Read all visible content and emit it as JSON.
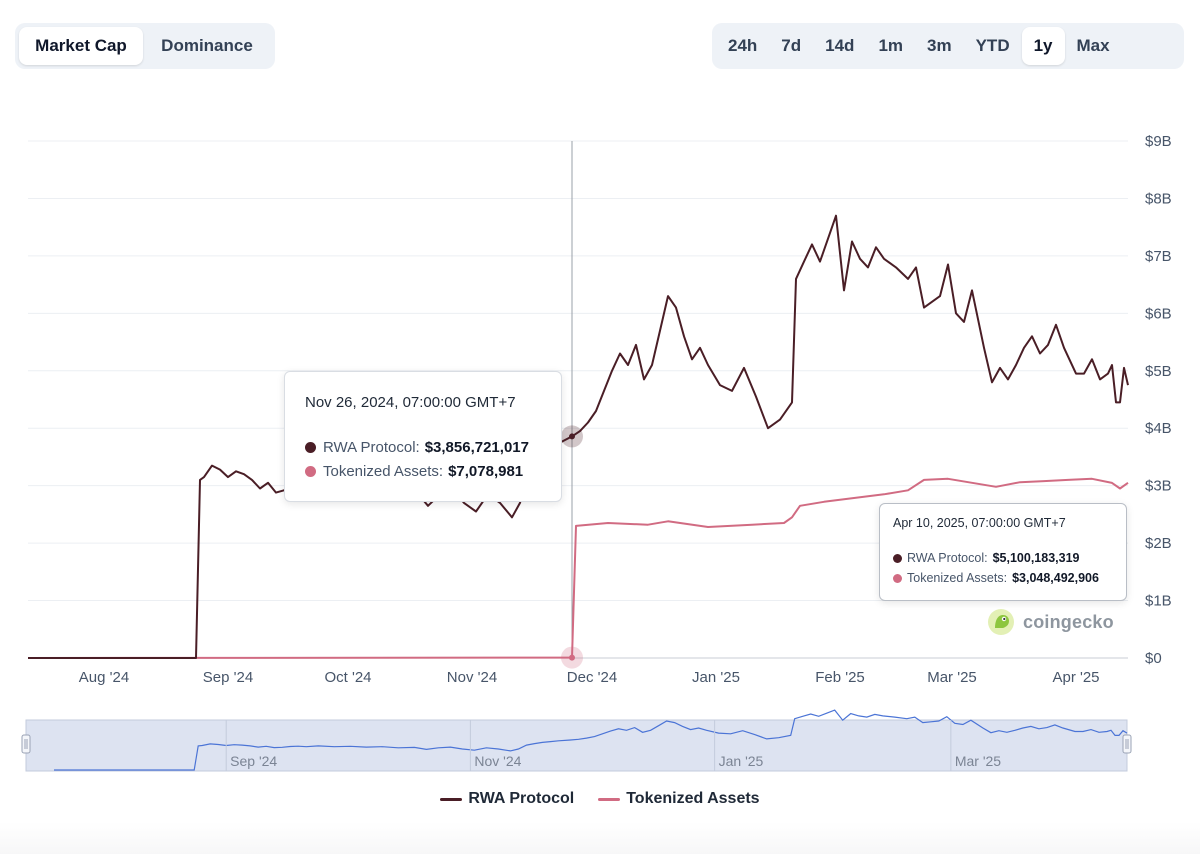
{
  "tabs": [
    {
      "label": "Market Cap",
      "active": true
    },
    {
      "label": "Dominance",
      "active": false
    }
  ],
  "ranges": [
    {
      "label": "24h",
      "active": false
    },
    {
      "label": "7d",
      "active": false
    },
    {
      "label": "14d",
      "active": false
    },
    {
      "label": "1m",
      "active": false
    },
    {
      "label": "3m",
      "active": false
    },
    {
      "label": "YTD",
      "active": false
    },
    {
      "label": "1y",
      "active": true
    },
    {
      "label": "Max",
      "active": false
    }
  ],
  "chart_data": {
    "type": "line",
    "y_ticks": [
      "$0",
      "$1B",
      "$2B",
      "$3B",
      "$4B",
      "$5B",
      "$6B",
      "$7B",
      "$8B",
      "$9B"
    ],
    "ylim": [
      0,
      9000000000
    ],
    "x_ticks": [
      "Aug '24",
      "Sep '24",
      "Oct '24",
      "Nov '24",
      "Dec '24",
      "Jan '25",
      "Feb '25",
      "Mar '25",
      "Apr '25"
    ],
    "grid": true,
    "legend_position": "bottom-center",
    "series": [
      {
        "name": "RWA Protocol",
        "color": "#4a1e26",
        "points": [
          [
            "2024-07-13",
            0
          ],
          [
            "2024-08-24",
            0
          ],
          [
            "2024-08-25",
            3100000000.0
          ],
          [
            "2024-08-26",
            3150000000.0
          ],
          [
            "2024-08-28",
            3350000000.0
          ],
          [
            "2024-08-30",
            3280000000.0
          ],
          [
            "2024-09-01",
            3150000000.0
          ],
          [
            "2024-09-03",
            3250000000.0
          ],
          [
            "2024-09-05",
            3200000000.0
          ],
          [
            "2024-09-07",
            3100000000.0
          ],
          [
            "2024-09-09",
            2950000000.0
          ],
          [
            "2024-09-11",
            3050000000.0
          ],
          [
            "2024-09-13",
            2880000000.0
          ],
          [
            "2024-09-15",
            2920000000.0
          ],
          [
            "2024-09-17",
            3020000000.0
          ],
          [
            "2024-09-19",
            3060000000.0
          ],
          [
            "2024-09-21",
            3000000000.0
          ],
          [
            "2024-09-24",
            3100000000.0
          ],
          [
            "2024-09-28",
            3000000000.0
          ],
          [
            "2024-10-02",
            3050000000.0
          ],
          [
            "2024-10-06",
            2950000000.0
          ],
          [
            "2024-10-10",
            3000000000.0
          ],
          [
            "2024-10-14",
            2850000000.0
          ],
          [
            "2024-10-18",
            2900000000.0
          ],
          [
            "2024-10-21",
            2650000000.0
          ],
          [
            "2024-10-24",
            2850000000.0
          ],
          [
            "2024-10-27",
            2950000000.0
          ],
          [
            "2024-10-30",
            2700000000.0
          ],
          [
            "2024-11-02",
            2550000000.0
          ],
          [
            "2024-11-05",
            2850000000.0
          ],
          [
            "2024-11-08",
            2700000000.0
          ],
          [
            "2024-11-11",
            2450000000.0
          ],
          [
            "2024-11-13",
            2700000000.0
          ],
          [
            "2024-11-15",
            3200000000.0
          ],
          [
            "2024-11-17",
            3400000000.0
          ],
          [
            "2024-11-19",
            3550000000.0
          ],
          [
            "2024-11-21",
            3650000000.0
          ],
          [
            "2024-11-23",
            3750000000.0
          ],
          [
            "2024-11-26",
            3857000000.0
          ],
          [
            "2024-11-28",
            3950000000.0
          ],
          [
            "2024-11-30",
            4100000000.0
          ],
          [
            "2024-12-02",
            4300000000.0
          ],
          [
            "2024-12-04",
            4650000000.0
          ],
          [
            "2024-12-06",
            5000000000.0
          ],
          [
            "2024-12-08",
            5300000000.0
          ],
          [
            "2024-12-10",
            5100000000.0
          ],
          [
            "2024-12-12",
            5450000000.0
          ],
          [
            "2024-12-14",
            4850000000.0
          ],
          [
            "2024-12-16",
            5100000000.0
          ],
          [
            "2024-12-18",
            5700000000.0
          ],
          [
            "2024-12-20",
            6300000000.0
          ],
          [
            "2024-12-22",
            6100000000.0
          ],
          [
            "2024-12-24",
            5600000000.0
          ],
          [
            "2024-12-26",
            5200000000.0
          ],
          [
            "2024-12-28",
            5400000000.0
          ],
          [
            "2024-12-30",
            5100000000.0
          ],
          [
            "2025-01-02",
            4750000000.0
          ],
          [
            "2025-01-05",
            4650000000.0
          ],
          [
            "2025-01-08",
            5050000000.0
          ],
          [
            "2025-01-11",
            4550000000.0
          ],
          [
            "2025-01-14",
            4000000000.0
          ],
          [
            "2025-01-17",
            4150000000.0
          ],
          [
            "2025-01-20",
            4450000000.0
          ],
          [
            "2025-01-21",
            6600000000.0
          ],
          [
            "2025-01-23",
            6900000000.0
          ],
          [
            "2025-01-25",
            7200000000.0
          ],
          [
            "2025-01-27",
            6900000000.0
          ],
          [
            "2025-01-29",
            7300000000.0
          ],
          [
            "2025-01-31",
            7700000000.0
          ],
          [
            "2025-02-02",
            6400000000.0
          ],
          [
            "2025-02-04",
            7250000000.0
          ],
          [
            "2025-02-06",
            6950000000.0
          ],
          [
            "2025-02-08",
            6800000000.0
          ],
          [
            "2025-02-10",
            7150000000.0
          ],
          [
            "2025-02-12",
            6950000000.0
          ],
          [
            "2025-02-15",
            6800000000.0
          ],
          [
            "2025-02-18",
            6600000000.0
          ],
          [
            "2025-02-20",
            6800000000.0
          ],
          [
            "2025-02-22",
            6100000000.0
          ],
          [
            "2025-02-24",
            6200000000.0
          ],
          [
            "2025-02-26",
            6300000000.0
          ],
          [
            "2025-02-28",
            6850000000.0
          ],
          [
            "2025-03-02",
            6000000000.0
          ],
          [
            "2025-03-04",
            5850000000.0
          ],
          [
            "2025-03-06",
            6400000000.0
          ],
          [
            "2025-03-09",
            5400000000.0
          ],
          [
            "2025-03-11",
            4800000000.0
          ],
          [
            "2025-03-13",
            5050000000.0
          ],
          [
            "2025-03-15",
            4850000000.0
          ],
          [
            "2025-03-17",
            5100000000.0
          ],
          [
            "2025-03-19",
            5400000000.0
          ],
          [
            "2025-03-21",
            5600000000.0
          ],
          [
            "2025-03-23",
            5300000000.0
          ],
          [
            "2025-03-25",
            5450000000.0
          ],
          [
            "2025-03-27",
            5800000000.0
          ],
          [
            "2025-03-29",
            5400000000.0
          ],
          [
            "2025-04-01",
            4950000000.0
          ],
          [
            "2025-04-03",
            4950000000.0
          ],
          [
            "2025-04-05",
            5200000000.0
          ],
          [
            "2025-04-07",
            4850000000.0
          ],
          [
            "2025-04-09",
            4950000000.0
          ],
          [
            "2025-04-10",
            5100000000.0
          ],
          [
            "2025-04-11",
            4450000000.0
          ],
          [
            "2025-04-12",
            4450000000.0
          ],
          [
            "2025-04-13",
            5050000000.0
          ],
          [
            "2025-04-14",
            4750000000.0
          ]
        ]
      },
      {
        "name": "Tokenized Assets",
        "color": "#d16b82",
        "points": [
          [
            "2024-07-13",
            0
          ],
          [
            "2024-11-26",
            7078981
          ],
          [
            "2024-11-27",
            2300000000.0
          ],
          [
            "2024-12-05",
            2350000000.0
          ],
          [
            "2024-12-15",
            2320000000.0
          ],
          [
            "2024-12-20",
            2380000000.0
          ],
          [
            "2024-12-30",
            2280000000.0
          ],
          [
            "2025-01-10",
            2320000000.0
          ],
          [
            "2025-01-18",
            2350000000.0
          ],
          [
            "2025-01-20",
            2450000000.0
          ],
          [
            "2025-01-22",
            2650000000.0
          ],
          [
            "2025-01-28",
            2720000000.0
          ],
          [
            "2025-02-04",
            2780000000.0
          ],
          [
            "2025-02-12",
            2850000000.0
          ],
          [
            "2025-02-18",
            2920000000.0
          ],
          [
            "2025-02-22",
            3100000000.0
          ],
          [
            "2025-02-28",
            3120000000.0
          ],
          [
            "2025-03-06",
            3050000000.0
          ],
          [
            "2025-03-12",
            2980000000.0
          ],
          [
            "2025-03-18",
            3060000000.0
          ],
          [
            "2025-03-24",
            3080000000.0
          ],
          [
            "2025-03-30",
            3100000000.0
          ],
          [
            "2025-04-05",
            3120000000.0
          ],
          [
            "2025-04-10",
            3048000000.0
          ],
          [
            "2025-04-12",
            2950000000.0
          ],
          [
            "2025-04-14",
            3050000000.0
          ]
        ]
      }
    ],
    "tooltips": [
      {
        "date": "Nov 26, 2024, 07:00:00 GMT+7",
        "rows": [
          {
            "series": "RWA Protocol",
            "label": "RWA Protocol:",
            "value": "$3,856,721,017",
            "color": "#4a1e26"
          },
          {
            "series": "Tokenized Assets",
            "label": "Tokenized Assets:",
            "value": "$7,078,981",
            "color": "#d16b82"
          }
        ]
      },
      {
        "date": "Apr 10, 2025, 07:00:00 GMT+7",
        "rows": [
          {
            "series": "RWA Protocol",
            "label": "RWA Protocol:",
            "value": "$5,100,183,319",
            "color": "#4a1e26"
          },
          {
            "series": "Tokenized Assets",
            "label": "Tokenized Assets:",
            "value": "$3,048,492,906",
            "color": "#d16b82"
          }
        ]
      }
    ],
    "crosshair_date": "2024-11-26",
    "navigator": {
      "series_color": "#4b74d6",
      "ticks": [
        "Sep '24",
        "Nov '24",
        "Jan '25",
        "Mar '25"
      ]
    }
  },
  "watermark": {
    "text": "coingecko"
  },
  "legend": [
    {
      "label": "RWA Protocol",
      "color": "#4a1e26"
    },
    {
      "label": "Tokenized Assets",
      "color": "#d16b82"
    }
  ]
}
